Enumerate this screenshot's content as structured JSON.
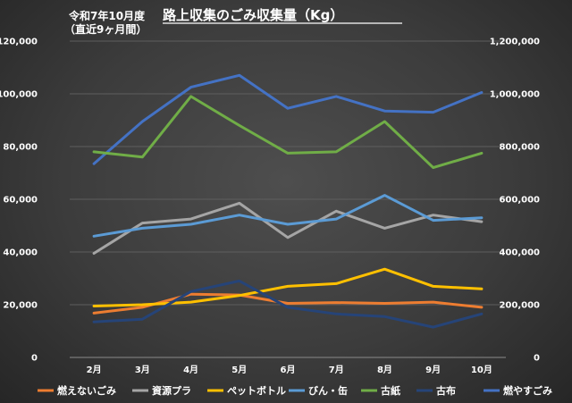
{
  "chart_data": {
    "type": "line",
    "subtitle_lines": [
      "令和7年10月度",
      "（直近9ヶ月間）"
    ],
    "title": "路上収集のごみ収集量（Kg）",
    "categories": [
      "2月",
      "3月",
      "4月",
      "5月",
      "6月",
      "7月",
      "8月",
      "9月",
      "10月"
    ],
    "ylim_left": [
      0,
      120000
    ],
    "ylim_right": [
      0,
      1200000
    ],
    "yticks_left": [
      "0",
      "20,000",
      "40,000",
      "60,000",
      "80,000",
      "100,000",
      "120,000"
    ],
    "yticks_right": [
      "0",
      "200,000",
      "400,000",
      "600,000",
      "800,000",
      "1,000,000",
      "1,200,000"
    ],
    "grid": true,
    "legend_position": "bottom",
    "series": [
      {
        "name": "燃えないごみ",
        "color": "#ed7d31",
        "axis": "left",
        "values": [
          16800,
          19000,
          24000,
          23700,
          20500,
          20800,
          20500,
          21000,
          19000
        ]
      },
      {
        "name": "資源プラ",
        "color": "#a5a5a5",
        "axis": "left",
        "values": [
          39500,
          51000,
          52500,
          58500,
          45500,
          55500,
          49000,
          54000,
          51500
        ]
      },
      {
        "name": "ペットボトル",
        "color": "#ffc000",
        "axis": "left",
        "values": [
          19500,
          20000,
          21000,
          23500,
          27000,
          28000,
          33500,
          27000,
          26000
        ]
      },
      {
        "name": "びん・缶",
        "color": "#5b9bd5",
        "axis": "left",
        "values": [
          46000,
          49000,
          50500,
          54000,
          50500,
          52500,
          61500,
          52000,
          53000
        ]
      },
      {
        "name": "古紙",
        "color": "#70ad47",
        "axis": "left",
        "values": [
          78000,
          76000,
          99000,
          88000,
          77500,
          78000,
          89500,
          72000,
          77500
        ]
      },
      {
        "name": "古布",
        "color": "#264478",
        "axis": "left",
        "values": [
          13500,
          14500,
          25000,
          29000,
          19000,
          16500,
          15500,
          11500,
          16500
        ]
      },
      {
        "name": "燃やすごみ",
        "color": "#4472c4",
        "axis": "right",
        "values": [
          735000,
          895000,
          1025000,
          1070000,
          945000,
          990000,
          935000,
          930000,
          1005000
        ]
      }
    ]
  }
}
